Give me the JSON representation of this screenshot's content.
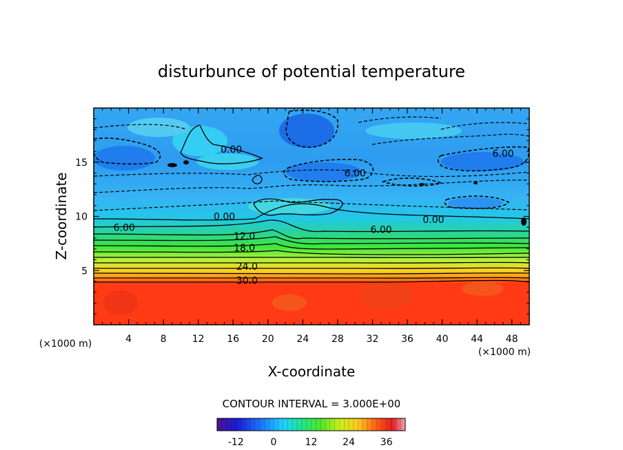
{
  "chart_data": {
    "type": "contour",
    "title": "disturbunce of potential temperature",
    "xlabel": "X-coordinate",
    "ylabel": "Z-coordinate",
    "x_unit_left": "(×1000 m)",
    "x_unit_right": "(×1000 m)",
    "xlim": [
      0,
      50
    ],
    "ylim": [
      0,
      20
    ],
    "x_ticks": [
      4,
      8,
      12,
      16,
      20,
      24,
      28,
      32,
      36,
      40,
      44,
      48
    ],
    "y_ticks": [
      5,
      10,
      15
    ],
    "contour_interval_text": "CONTOUR INTERVAL = 3.000E+00",
    "contour_interval": 3,
    "contour_labels": [
      {
        "text": "0.00",
        "x": 15.8,
        "z": 16.2
      },
      {
        "text": "0.00",
        "x": 15.0,
        "z": 10.0
      },
      {
        "text": "0.00",
        "x": 39.0,
        "z": 9.7
      },
      {
        "text": "6.00",
        "x": 3.5,
        "z": 9.0
      },
      {
        "text": "6.00",
        "x": 33.0,
        "z": 8.8
      },
      {
        "text": "12.0",
        "x": 17.3,
        "z": 8.2
      },
      {
        "text": "18.0",
        "x": 17.3,
        "z": 7.1
      },
      {
        "text": "24.0",
        "x": 17.6,
        "z": 5.4
      },
      {
        "text": "30.0",
        "x": 17.6,
        "z": 4.1
      },
      {
        "text": "6.00",
        "x": 30.0,
        "z": 14.0
      },
      {
        "text": "6.00",
        "x": 47.0,
        "z": 15.8
      }
    ],
    "colorbar": {
      "min": -18,
      "max": 42,
      "ticks": [
        -12,
        0,
        12,
        24,
        36
      ],
      "tick_labels": [
        "-12",
        "0",
        "12",
        "24",
        "36"
      ]
    },
    "field_summary": [
      {
        "z_range": [
          0,
          4
        ],
        "value": 36
      },
      {
        "z_range": [
          4,
          9
        ],
        "value_range": [
          6,
          33
        ]
      },
      {
        "z_range": [
          9,
          20
        ],
        "value_range": [
          -9,
          3
        ]
      }
    ]
  }
}
